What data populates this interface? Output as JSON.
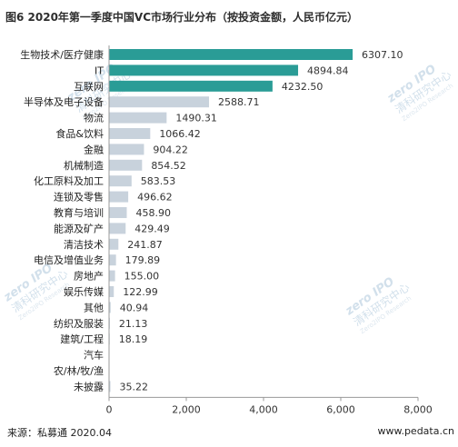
{
  "title": "图6 2020年第一季度中国VC市场行业分布（按投资金额，人民币亿元）",
  "source": "来源：私募通 2020.04",
  "website": "www.pedata.cn",
  "watermark": {
    "brand": "zero",
    "brand_tag": "IPO",
    "name": "清科研究中心",
    "romanized": "Zero2IPO Research"
  },
  "colors": {
    "highlight": "#2a9c96",
    "normal": "#c8d2dc",
    "axis": "#999999",
    "value_label": "#333333"
  },
  "chart_data": {
    "type": "bar",
    "orientation": "horizontal",
    "title": "图6 2020年第一季度中国VC市场行业分布（按投资金额，人民币亿元）",
    "categories": [
      "生物技术/医疗健康",
      "IT",
      "互联网",
      "半导体及电子设备",
      "物流",
      "食品&饮料",
      "金融",
      "机械制造",
      "化工原料及加工",
      "连锁及零售",
      "教育与培训",
      "能源及矿产",
      "清洁技术",
      "电信及增值业务",
      "房地产",
      "娱乐传媒",
      "其他",
      "纺织及服装",
      "建筑/工程",
      "汽车",
      "农/林/牧/渔",
      "未披露"
    ],
    "values": [
      6307.1,
      4894.84,
      4232.5,
      2588.71,
      1490.31,
      1066.42,
      904.22,
      854.52,
      583.53,
      496.62,
      458.9,
      429.49,
      241.87,
      179.89,
      155.0,
      122.99,
      40.94,
      21.13,
      18.19,
      null,
      null,
      35.22
    ],
    "value_labels": [
      "6307.10",
      "4894.84",
      "4232.50",
      "2588.71",
      "1490.31",
      "1066.42",
      "904.22",
      "854.52",
      "583.53",
      "496.62",
      "458.90",
      "429.49",
      "241.87",
      "179.89",
      "155.00",
      "122.99",
      "40.94",
      "21.13",
      "18.19",
      "",
      "",
      "35.22"
    ],
    "highlight_count": 3,
    "xlim": [
      0,
      8000
    ],
    "xticks": [
      0,
      2000,
      4000,
      6000,
      8000
    ],
    "xtick_labels": [
      "0",
      "2,000",
      "4,000",
      "6,000",
      "8,000"
    ],
    "xlabel": "",
    "ylabel": "",
    "grid": false,
    "legend": "none"
  }
}
